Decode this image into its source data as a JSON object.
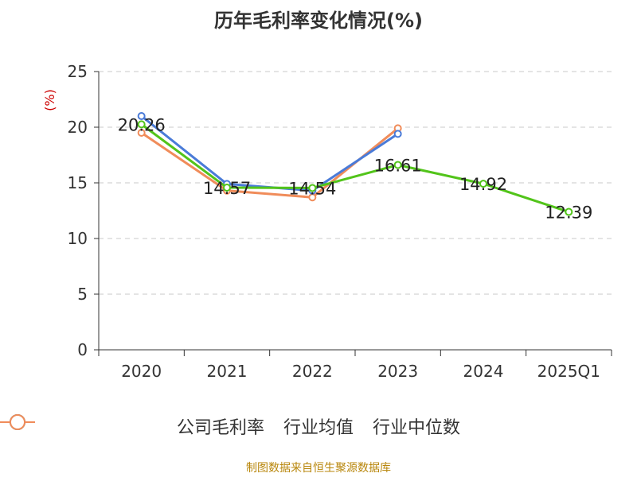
{
  "title": "历年毛利率变化情况(%)",
  "footer": "制图数据来自恒生聚源数据库",
  "chart_data": {
    "type": "line",
    "title": "历年毛利率变化情况(%)",
    "ylabel": "(%)",
    "ylim": [
      0,
      25
    ],
    "yticks": [
      0,
      5,
      10,
      15,
      20,
      25
    ],
    "categories": [
      "2020",
      "2021",
      "2022",
      "2023",
      "2024",
      "2025Q1"
    ],
    "grid": true,
    "legend": "bottom",
    "series": [
      {
        "name": "公司毛利率",
        "color": "#52c41a",
        "values": [
          20.26,
          14.57,
          14.54,
          16.61,
          14.92,
          12.39
        ],
        "labels": [
          "20.26",
          "14.57",
          "14.54",
          "16.61",
          "14.92",
          "12.39"
        ]
      },
      {
        "name": "行业均值",
        "color": "#4a7bd8",
        "values": [
          21.0,
          14.9,
          14.3,
          19.4,
          null,
          null
        ]
      },
      {
        "name": "行业中位数",
        "color": "#f08c5a",
        "values": [
          19.5,
          14.3,
          13.7,
          19.9,
          null,
          null
        ]
      }
    ]
  }
}
